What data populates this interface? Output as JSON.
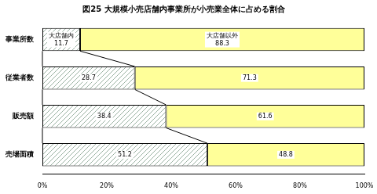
{
  "chart_data": {
    "type": "bar",
    "orientation": "horizontal",
    "stacked": true,
    "title": "図25 大規模小売店舗内事業所が小売業全体に占める割合",
    "categories": [
      "事業所数",
      "従業者数",
      "販売額",
      "売場面積"
    ],
    "series": [
      {
        "name": "大店舗内",
        "color": "#98b0a0",
        "values": [
          11.7,
          28.7,
          38.4,
          51.2
        ]
      },
      {
        "name": "大店舗以外",
        "color": "#ffff99",
        "values": [
          88.3,
          71.3,
          61.6,
          48.8
        ]
      }
    ],
    "xlim": [
      0,
      100
    ],
    "xticks": [
      {
        "value": 0,
        "label": "0%"
      },
      {
        "value": 20,
        "label": "20%"
      },
      {
        "value": 40,
        "label": "40%"
      },
      {
        "value": 60,
        "label": "60%"
      },
      {
        "value": 80,
        "label": "80%"
      },
      {
        "value": 100,
        "label": "100%"
      }
    ],
    "data_labels": true,
    "grid": false
  }
}
